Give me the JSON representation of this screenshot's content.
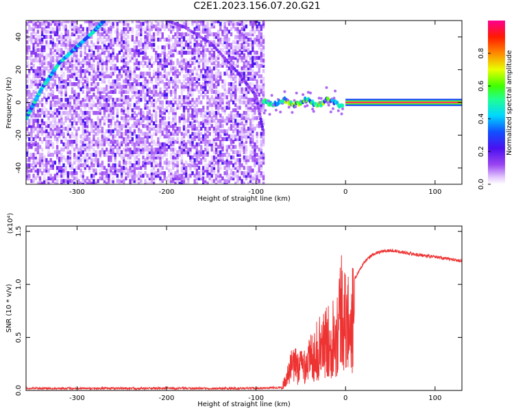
{
  "title": "C2E1.2023.156.07.20.G21",
  "chart_data": [
    {
      "type": "heatmap",
      "subtype": "spectrogram",
      "xlabel": "Height of straight line (km)",
      "ylabel": "Frequency (Hz)",
      "xlim": [
        -357,
        130
      ],
      "ylim": [
        -50,
        50
      ],
      "xticks": [
        -300,
        -200,
        -100,
        0,
        100
      ],
      "yticks": [
        -40,
        -20,
        0,
        20,
        40
      ],
      "xticklabels": [
        "-300",
        "-200",
        "-100",
        "0",
        "100"
      ],
      "yticklabels": [
        "-40",
        "-20",
        "0",
        "20",
        "40"
      ],
      "colorbar": {
        "label": "Normalized spectral amplitude",
        "range": [
          0.0,
          1.0
        ],
        "ticks": [
          0.0,
          0.2,
          0.4,
          0.6,
          0.8
        ],
        "ticklabels": [
          "0.0",
          "0.2",
          "0.4",
          "0.6",
          "0.8"
        ],
        "colormap": "rainbow (white→violet→blue→cyan→green→yellow→orange→red→magenta)"
      },
      "regions": [
        {
          "description": "noise region",
          "x": [
            -357,
            -92
          ],
          "freq": [
            -50,
            50
          ],
          "amplitude": 0.15
        },
        {
          "description": "rising arc",
          "points": [
            [
              -357,
              -10
            ],
            [
              -340,
              8
            ],
            [
              -320,
              24
            ],
            [
              -300,
              34
            ],
            [
              -280,
              44
            ],
            [
              -270,
              50
            ]
          ],
          "amplitude": 0.4
        },
        {
          "description": "falling arc",
          "points": [
            [
              -200,
              50
            ],
            [
              -180,
              46
            ],
            [
              -150,
              36
            ],
            [
              -120,
              18
            ],
            [
              -100,
              4
            ],
            [
              -92,
              -18
            ]
          ],
          "amplitude": 0.15
        },
        {
          "description": "carrier region",
          "x": [
            -92,
            -2
          ],
          "freq": [
            -3,
            4
          ],
          "amplitude": 0.5
        },
        {
          "description": "tone",
          "x": [
            0,
            130
          ],
          "freq": 0,
          "amplitude": 1.0
        }
      ]
    },
    {
      "type": "line",
      "xlabel": "Height of straight line (km)",
      "ylabel": "SNR (10 * v/v)",
      "y_multiplier_label": "(x10⁴)",
      "xlim": [
        -357,
        130
      ],
      "ylim": [
        0,
        1.55
      ],
      "xticks": [
        -300,
        -200,
        -100,
        0,
        100
      ],
      "yticks": [
        0.0,
        0.5,
        1.0,
        1.5
      ],
      "xticklabels": [
        "-300",
        "-200",
        "-100",
        "0",
        "100"
      ],
      "yticklabels": [
        "0.0",
        "0.5",
        "1.0",
        "1.5"
      ],
      "color": "#ee3333",
      "series": [
        {
          "x": [
            -357,
            -300,
            -200,
            -100,
            -72,
            -65,
            -60,
            -50,
            -40,
            -30,
            -20,
            -10,
            -5,
            0,
            10,
            20,
            30,
            40,
            50,
            60,
            80,
            100,
            130
          ],
          "y": [
            0.02,
            0.02,
            0.02,
            0.02,
            0.03,
            0.2,
            0.35,
            0.35,
            0.45,
            0.6,
            0.7,
            0.85,
            1.2,
            0.95,
            1.05,
            1.2,
            1.28,
            1.31,
            1.32,
            1.31,
            1.28,
            1.26,
            1.22
          ]
        }
      ]
    }
  ]
}
